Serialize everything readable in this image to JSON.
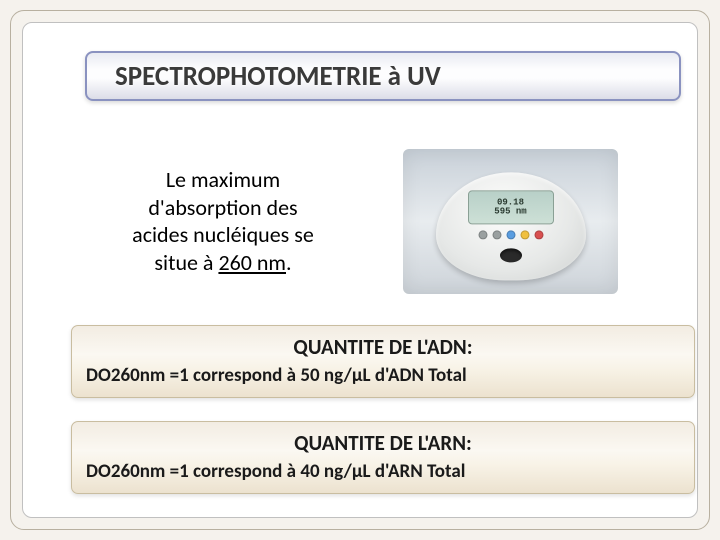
{
  "title": "SPECTROPHOTOMETRIE à UV",
  "body": {
    "line1": "Le maximum",
    "line2": "d'absorption des",
    "line3": "acides nucléiques se",
    "line4_prefix": "situe à ",
    "line4_hl": "260 nm",
    "line4_suffix": "."
  },
  "device": {
    "lcd_top": "09.18",
    "lcd_bottom": "595 nm",
    "btn_colors": [
      "#9aa0a0",
      "#9aa0a0",
      "#5a9de0",
      "#f0c040",
      "#d85050"
    ]
  },
  "box1": {
    "title": "QUANTITE DE L'ADN:",
    "body": "DO260nm =1 correspond à 50 ng/µL d'ADN Total"
  },
  "box2": {
    "title": "QUANTITE DE L'ARN:",
    "body": "DO260nm =1 correspond à 40 ng/µL d'ARN Total"
  }
}
